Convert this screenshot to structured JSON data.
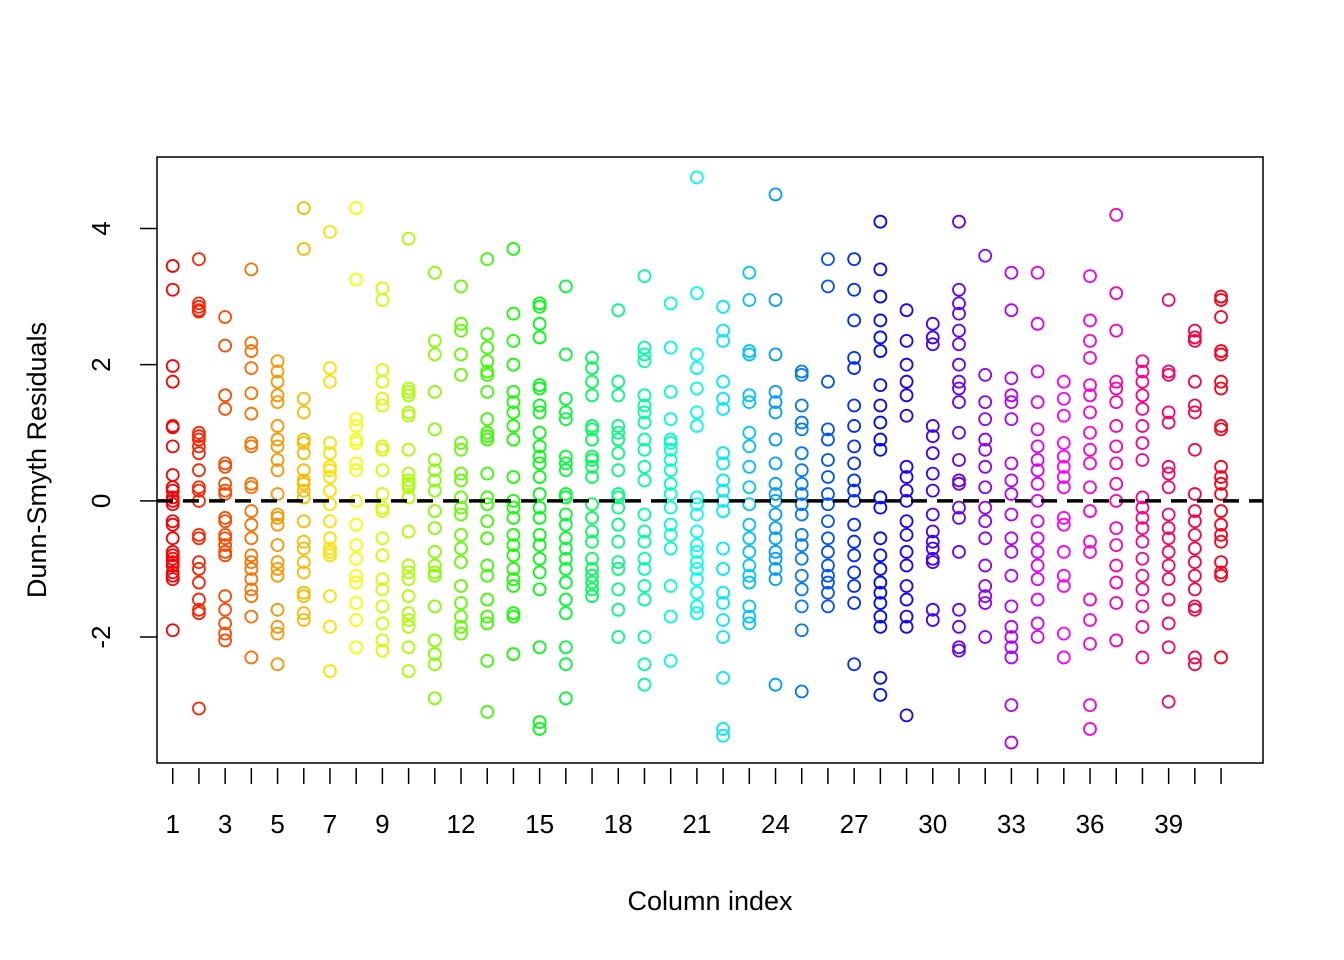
{
  "chart_data": {
    "type": "scatter",
    "title": "",
    "xlabel": "Column index",
    "ylabel": "Dunn-Smyth Residuals",
    "xlim": [
      0.4,
      42.6
    ],
    "ylim": [
      -3.85,
      5.05
    ],
    "x_ticks": [
      1,
      2,
      3,
      4,
      5,
      6,
      7,
      8,
      9,
      10,
      11,
      12,
      13,
      14,
      15,
      16,
      17,
      18,
      19,
      20,
      21,
      22,
      23,
      24,
      25,
      26,
      27,
      28,
      29,
      30,
      31,
      32,
      33,
      34,
      35,
      36,
      37,
      38,
      39,
      40,
      41
    ],
    "x_tick_labels": [
      "1",
      "3",
      "5",
      "7",
      "9",
      "12",
      "15",
      "18",
      "21",
      "24",
      "27",
      "30",
      "33",
      "36",
      "39"
    ],
    "y_ticks": [
      -2,
      0,
      2,
      4
    ],
    "y_tick_labels": [
      "-2",
      "0",
      "2",
      "4"
    ],
    "reference_line": {
      "y": 0,
      "style": "dashed",
      "color": "#000000"
    },
    "grid": false,
    "legend": "none",
    "marker": "open-circle",
    "color_scheme": "rainbow (one hue per column, red → violet → red)",
    "series": [
      {
        "x": 1,
        "color": "#FF0000",
        "values": [
          3.45,
          3.1,
          1.98,
          1.75,
          1.1,
          1.08,
          0.8,
          0.38,
          0.2,
          0.15,
          0.05,
          0.0,
          -0.05,
          -0.3,
          -0.35,
          -0.55,
          -0.75,
          -0.8,
          -0.85,
          -0.9,
          -0.95,
          -1.05,
          -1.1,
          -1.15,
          -1.9
        ]
      },
      {
        "x": 2,
        "color": "#FF2500",
        "values": [
          3.55,
          2.9,
          2.85,
          2.8,
          2.78,
          1.0,
          0.95,
          0.9,
          0.8,
          0.7,
          0.45,
          0.2,
          0.15,
          0.0,
          -0.5,
          -0.55,
          -0.9,
          -1.0,
          -1.2,
          -1.45,
          -1.6,
          -1.65,
          -3.05
        ]
      },
      {
        "x": 3,
        "color": "#FF4B00",
        "values": [
          2.7,
          2.28,
          1.55,
          1.35,
          0.55,
          0.5,
          0.25,
          0.15,
          0.1,
          -0.25,
          -0.3,
          -0.5,
          -0.55,
          -0.65,
          -0.75,
          -0.8,
          -1.4,
          -1.6,
          -1.8,
          -1.95,
          -2.05
        ]
      },
      {
        "x": 4,
        "color": "#FF7000",
        "values": [
          3.4,
          2.32,
          2.2,
          1.95,
          1.58,
          1.28,
          0.85,
          0.8,
          0.25,
          0.2,
          -0.15,
          -0.35,
          -0.55,
          -0.8,
          -0.9,
          -1.0,
          -1.15,
          -1.3,
          -1.4,
          -1.7,
          -2.3
        ]
      },
      {
        "x": 5,
        "color": "#FF9600",
        "values": [
          2.05,
          1.9,
          1.75,
          1.55,
          1.45,
          1.1,
          0.9,
          0.8,
          0.6,
          0.45,
          0.1,
          -0.2,
          -0.25,
          -0.35,
          -0.65,
          -0.9,
          -1.0,
          -1.1,
          -1.6,
          -1.85,
          -1.95,
          -2.4
        ]
      },
      {
        "x": 6,
        "color": "#FFBB00",
        "values": [
          4.3,
          3.7,
          1.5,
          1.3,
          0.9,
          0.85,
          0.7,
          0.45,
          0.3,
          0.25,
          0.15,
          0.05,
          -0.3,
          -0.6,
          -0.7,
          -0.9,
          -1.05,
          -1.35,
          -1.4,
          -1.65,
          -1.75
        ]
      },
      {
        "x": 7,
        "color": "#FFE100",
        "values": [
          3.95,
          1.95,
          1.75,
          0.85,
          0.7,
          0.5,
          0.45,
          0.35,
          0.15,
          -0.05,
          -0.3,
          -0.55,
          -0.7,
          -0.75,
          -0.8,
          -1.4,
          -1.85,
          -2.5
        ]
      },
      {
        "x": 8,
        "color": "#F7FF00",
        "values": [
          4.3,
          3.25,
          1.2,
          1.1,
          0.9,
          0.85,
          0.55,
          0.45,
          0.0,
          -0.35,
          -0.65,
          -0.85,
          -1.1,
          -1.2,
          -1.5,
          -1.75,
          -2.15
        ]
      },
      {
        "x": 9,
        "color": "#D2FF00",
        "values": [
          3.12,
          2.95,
          1.92,
          1.75,
          1.5,
          1.4,
          0.8,
          0.75,
          0.45,
          0.1,
          -0.1,
          -0.15,
          -0.55,
          -0.8,
          -1.15,
          -1.3,
          -1.55,
          -1.8,
          -2.05,
          -2.2
        ]
      },
      {
        "x": 10,
        "color": "#ACFF00",
        "values": [
          3.85,
          1.65,
          1.6,
          1.55,
          1.3,
          1.25,
          0.75,
          0.4,
          0.3,
          0.25,
          0.2,
          0.05,
          -0.45,
          -0.95,
          -1.05,
          -1.15,
          -1.4,
          -1.65,
          -1.75,
          -1.85,
          -2.15,
          -2.5
        ]
      },
      {
        "x": 11,
        "color": "#87FF00",
        "values": [
          3.35,
          2.35,
          2.15,
          1.6,
          1.05,
          0.6,
          0.45,
          0.3,
          0.15,
          -0.15,
          -0.4,
          -0.75,
          -0.95,
          -1.05,
          -1.1,
          -1.55,
          -2.05,
          -2.25,
          -2.4,
          -2.9
        ]
      },
      {
        "x": 12,
        "color": "#61FF00",
        "values": [
          3.15,
          2.6,
          2.5,
          2.15,
          1.85,
          0.85,
          0.75,
          0.4,
          0.3,
          0.05,
          -0.1,
          -0.2,
          -0.5,
          -0.7,
          -0.9,
          -1.25,
          -1.5,
          -1.7,
          -1.85,
          -1.95
        ]
      },
      {
        "x": 13,
        "color": "#3CFF00",
        "values": [
          3.55,
          2.45,
          2.25,
          2.05,
          1.9,
          1.85,
          1.6,
          1.2,
          1.0,
          0.95,
          0.9,
          0.4,
          0.05,
          -0.05,
          -0.3,
          -0.55,
          -0.95,
          -1.1,
          -1.45,
          -1.7,
          -1.8,
          -2.35,
          -3.1
        ]
      },
      {
        "x": 14,
        "color": "#16FF00",
        "values": [
          3.7,
          2.75,
          2.35,
          2.0,
          1.6,
          1.45,
          1.3,
          1.1,
          0.9,
          0.35,
          0.0,
          -0.1,
          -0.25,
          -0.5,
          -0.65,
          -0.8,
          -1.0,
          -1.15,
          -1.25,
          -1.65,
          -1.7,
          -2.25
        ]
      },
      {
        "x": 15,
        "color": "#00FF0F",
        "values": [
          2.9,
          2.85,
          2.6,
          2.4,
          1.7,
          1.65,
          1.4,
          1.3,
          1.0,
          0.8,
          0.65,
          0.55,
          0.35,
          0.1,
          -0.1,
          -0.25,
          -0.5,
          -0.65,
          -0.85,
          -1.05,
          -1.3,
          -2.15,
          -3.25,
          -3.35
        ]
      },
      {
        "x": 16,
        "color": "#00FF34",
        "values": [
          3.15,
          2.15,
          1.5,
          1.3,
          1.2,
          0.65,
          0.55,
          0.45,
          0.1,
          0.05,
          -0.2,
          -0.35,
          -0.55,
          -0.7,
          -0.85,
          -1.0,
          -1.2,
          -1.45,
          -1.65,
          -2.15,
          -2.4,
          -2.9
        ]
      },
      {
        "x": 17,
        "color": "#00FF5A",
        "values": [
          2.1,
          1.95,
          1.75,
          1.55,
          1.1,
          1.05,
          0.9,
          0.65,
          0.6,
          0.5,
          0.35,
          -0.05,
          -0.25,
          -0.45,
          -0.6,
          -0.85,
          -1.0,
          -1.1,
          -1.2,
          -1.3,
          -1.4
        ]
      },
      {
        "x": 18,
        "color": "#00FF7F",
        "values": [
          2.8,
          1.75,
          1.55,
          1.1,
          1.0,
          0.9,
          0.7,
          0.45,
          0.1,
          0.05,
          -0.1,
          -0.35,
          -0.6,
          -0.9,
          -1.0,
          -1.3,
          -1.6,
          -2.0
        ]
      },
      {
        "x": 19,
        "color": "#00FFA5",
        "values": [
          3.3,
          2.25,
          2.15,
          2.05,
          1.55,
          1.4,
          1.3,
          1.15,
          0.9,
          0.75,
          0.5,
          0.3,
          -0.2,
          -0.45,
          -0.6,
          -0.85,
          -1.0,
          -1.25,
          -1.45,
          -2.0,
          -2.4,
          -2.7
        ]
      },
      {
        "x": 20,
        "color": "#00FFCA",
        "values": [
          2.9,
          2.25,
          1.6,
          1.2,
          0.9,
          0.85,
          0.75,
          0.6,
          0.45,
          0.25,
          0.1,
          -0.1,
          -0.35,
          -0.5,
          -0.7,
          -1.25,
          -1.7,
          -2.35
        ]
      },
      {
        "x": 21,
        "color": "#00FFF0",
        "values": [
          4.75,
          3.05,
          2.15,
          1.95,
          1.65,
          1.3,
          1.1,
          0.05,
          -0.05,
          -0.2,
          -0.45,
          -0.65,
          -0.75,
          -0.9,
          -1.0,
          -1.15,
          -1.35,
          -1.55,
          -1.65
        ]
      },
      {
        "x": 22,
        "color": "#00E9FF",
        "values": [
          2.85,
          2.5,
          2.35,
          1.75,
          1.5,
          1.35,
          0.7,
          0.55,
          0.3,
          0.15,
          0.0,
          -0.15,
          -0.7,
          -1.0,
          -1.35,
          -1.5,
          -1.75,
          -2.0,
          -2.6,
          -3.35,
          -3.45
        ]
      },
      {
        "x": 23,
        "color": "#00C4FF",
        "values": [
          3.35,
          2.95,
          2.2,
          2.15,
          1.55,
          1.45,
          1.0,
          0.8,
          0.5,
          0.2,
          -0.05,
          -0.35,
          -0.55,
          -0.75,
          -0.95,
          -1.1,
          -1.2,
          -1.55,
          -1.7,
          -1.8
        ]
      },
      {
        "x": 24,
        "color": "#009EFF",
        "values": [
          4.5,
          2.95,
          2.15,
          1.6,
          1.45,
          1.3,
          0.9,
          0.55,
          0.25,
          0.1,
          0.0,
          -0.2,
          -0.4,
          -0.55,
          -0.75,
          -0.85,
          -1.0,
          -1.15,
          -2.7
        ]
      },
      {
        "x": 25,
        "color": "#0079FF",
        "values": [
          1.9,
          1.85,
          1.4,
          1.15,
          1.05,
          0.7,
          0.45,
          0.25,
          0.1,
          -0.05,
          -0.2,
          -0.5,
          -0.65,
          -0.85,
          -1.1,
          -1.3,
          -1.55,
          -1.9,
          -2.8
        ]
      },
      {
        "x": 26,
        "color": "#0053FF",
        "values": [
          3.55,
          3.15,
          1.75,
          1.05,
          0.9,
          0.6,
          0.35,
          0.1,
          -0.05,
          -0.3,
          -0.55,
          -0.75,
          -0.95,
          -1.1,
          -1.2,
          -1.35,
          -1.55
        ]
      },
      {
        "x": 27,
        "color": "#002EFF",
        "values": [
          3.55,
          3.1,
          2.65,
          2.1,
          1.95,
          1.4,
          1.1,
          0.8,
          0.55,
          0.3,
          0.15,
          0.0,
          -0.35,
          -0.6,
          -0.8,
          -1.05,
          -1.25,
          -1.5,
          -2.4
        ]
      },
      {
        "x": 28,
        "color": "#0008FF",
        "values": [
          4.1,
          3.4,
          3.0,
          2.65,
          2.4,
          2.2,
          1.7,
          1.4,
          1.15,
          0.9,
          0.75,
          0.05,
          -0.1,
          -0.55,
          -0.8,
          -1.0,
          -1.2,
          -1.35,
          -1.5,
          -1.7,
          -1.85,
          -2.6,
          -2.85
        ]
      },
      {
        "x": 29,
        "color": "#1D00FF",
        "values": [
          2.8,
          2.35,
          2.0,
          1.75,
          1.55,
          1.25,
          0.5,
          0.35,
          0.15,
          0.0,
          -0.3,
          -0.5,
          -0.75,
          -0.95,
          -1.25,
          -1.45,
          -1.7,
          -1.85,
          -3.15
        ]
      },
      {
        "x": 30,
        "color": "#4300FF",
        "values": [
          2.6,
          2.4,
          2.3,
          1.1,
          0.95,
          0.7,
          0.4,
          0.15,
          -0.2,
          -0.45,
          -0.6,
          -0.7,
          -0.85,
          -0.9,
          -1.6,
          -1.75
        ]
      },
      {
        "x": 31,
        "color": "#6800FF",
        "values": [
          4.1,
          3.1,
          2.9,
          2.75,
          2.5,
          2.3,
          2.0,
          1.75,
          1.65,
          1.45,
          1.0,
          0.6,
          0.3,
          0.25,
          -0.1,
          -0.25,
          -0.75,
          -1.6,
          -1.85,
          -2.15,
          -2.2
        ]
      },
      {
        "x": 32,
        "color": "#8E00FF",
        "values": [
          3.6,
          1.85,
          1.45,
          1.2,
          0.9,
          0.75,
          0.5,
          0.2,
          -0.1,
          -0.3,
          -0.55,
          -0.95,
          -1.25,
          -1.4,
          -1.5,
          -2.0
        ]
      },
      {
        "x": 33,
        "color": "#B300FF",
        "values": [
          3.35,
          2.8,
          1.8,
          1.55,
          1.45,
          1.2,
          0.55,
          0.3,
          0.1,
          -0.2,
          -0.55,
          -0.75,
          -1.1,
          -1.55,
          -1.85,
          -2.0,
          -2.15,
          -2.3,
          -3.0,
          -3.55
        ]
      },
      {
        "x": 34,
        "color": "#D900FF",
        "values": [
          3.35,
          2.6,
          1.9,
          1.45,
          1.05,
          0.8,
          0.6,
          0.45,
          0.25,
          0.0,
          -0.3,
          -0.55,
          -0.75,
          -0.95,
          -1.15,
          -1.45,
          -1.8,
          -2.0
        ]
      },
      {
        "x": 35,
        "color": "#FF00FF",
        "values": [
          1.75,
          1.5,
          1.25,
          0.85,
          0.65,
          0.5,
          0.35,
          0.2,
          -0.25,
          -0.35,
          -0.75,
          -1.1,
          -1.25,
          -1.95,
          -2.3
        ]
      },
      {
        "x": 36,
        "color": "#FF00D9",
        "values": [
          3.3,
          2.65,
          2.35,
          2.1,
          1.7,
          1.55,
          1.3,
          1.0,
          0.75,
          0.55,
          0.2,
          -0.15,
          -0.6,
          -0.75,
          -1.45,
          -1.75,
          -2.1,
          -3.0,
          -3.35
        ]
      },
      {
        "x": 37,
        "color": "#FF00B3",
        "values": [
          4.2,
          3.05,
          2.5,
          1.75,
          1.65,
          1.45,
          1.1,
          0.8,
          0.55,
          0.25,
          0.0,
          -0.4,
          -0.65,
          -0.95,
          -1.2,
          -1.5,
          -2.05
        ]
      },
      {
        "x": 38,
        "color": "#FF008E",
        "values": [
          2.05,
          1.9,
          1.75,
          1.55,
          1.35,
          1.1,
          0.85,
          0.6,
          0.05,
          -0.1,
          -0.25,
          -0.4,
          -0.6,
          -0.85,
          -1.1,
          -1.3,
          -1.55,
          -1.85,
          -2.3
        ]
      },
      {
        "x": 39,
        "color": "#FF0068",
        "values": [
          2.95,
          1.9,
          1.85,
          1.3,
          1.15,
          0.5,
          0.4,
          0.2,
          -0.2,
          -0.4,
          -0.55,
          -0.75,
          -0.95,
          -1.15,
          -1.45,
          -1.8,
          -2.15,
          -2.95
        ]
      },
      {
        "x": 40,
        "color": "#FF0043",
        "values": [
          2.5,
          2.4,
          2.35,
          1.75,
          1.4,
          1.3,
          0.75,
          0.1,
          -0.15,
          -0.3,
          -0.5,
          -0.7,
          -0.9,
          -1.1,
          -1.3,
          -1.55,
          -1.6,
          -2.3,
          -2.4
        ]
      },
      {
        "x": 41,
        "color": "#FF001D",
        "values": [
          3.0,
          2.95,
          2.7,
          2.2,
          2.15,
          1.75,
          1.65,
          1.1,
          1.05,
          0.5,
          0.35,
          0.25,
          0.1,
          -0.15,
          -0.35,
          -0.5,
          -0.6,
          -0.9,
          -1.05,
          -1.1,
          -2.3
        ]
      }
    ]
  }
}
